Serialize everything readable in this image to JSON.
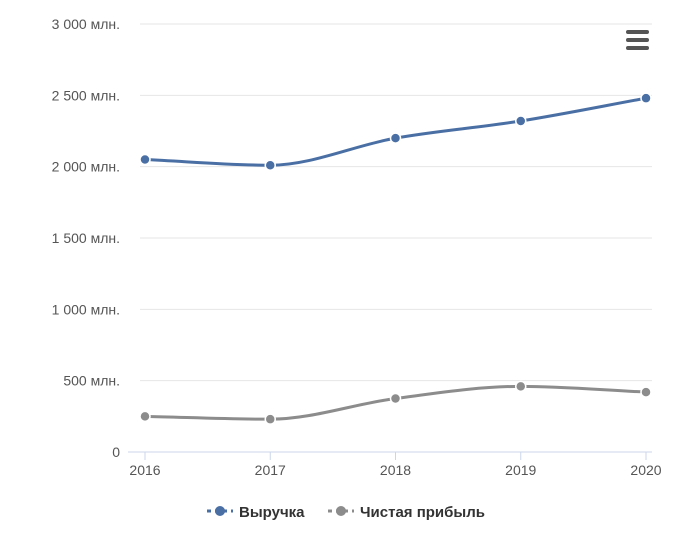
{
  "chart_data": {
    "type": "line",
    "title": "",
    "xlabel": "",
    "ylabel": "",
    "categories": [
      "2016",
      "2017",
      "2018",
      "2019",
      "2020"
    ],
    "y_ticks": [
      "0",
      "500 млн.",
      "1 000 млн.",
      "1 500 млн.",
      "2 000 млн.",
      "2 500 млн.",
      "3 000 млн."
    ],
    "ylim": [
      0,
      3000
    ],
    "grid": true,
    "legend_position": "bottom-center",
    "series": [
      {
        "name": "Выручка",
        "color": "#4a6fa5",
        "values": [
          2050,
          2010,
          2200,
          2320,
          2480
        ]
      },
      {
        "name": "Чистая прибыль",
        "color": "#8c8c8c",
        "values": [
          250,
          230,
          375,
          460,
          420
        ]
      }
    ]
  },
  "menu": {
    "icon": "hamburger-menu-icon"
  }
}
